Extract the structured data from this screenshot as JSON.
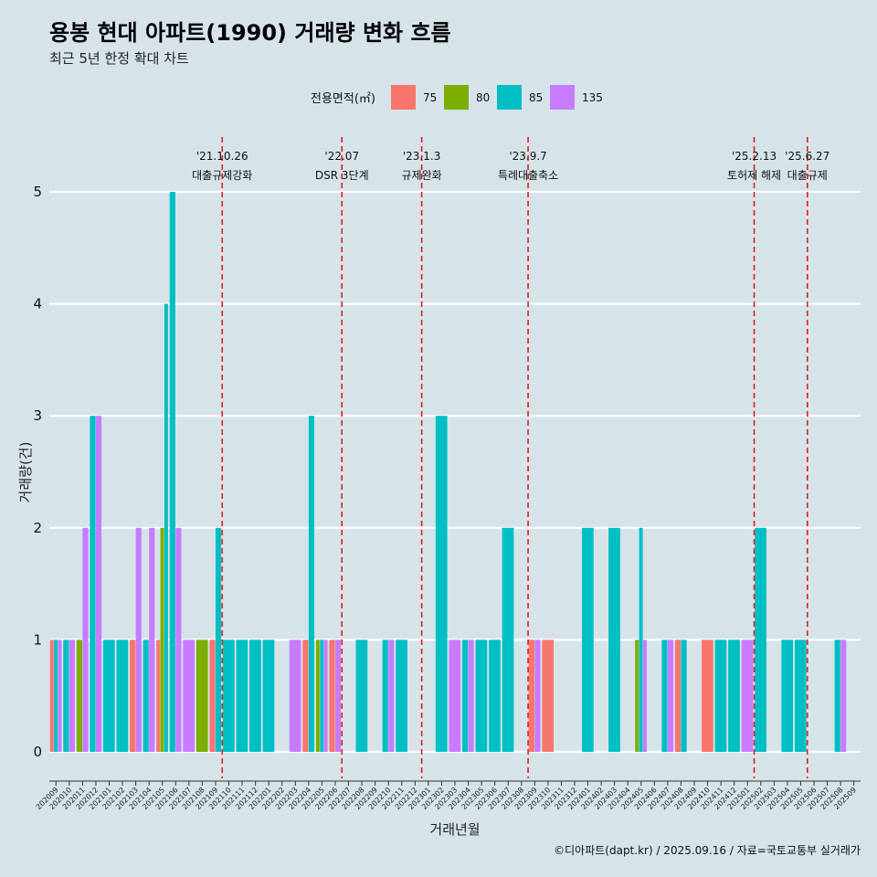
{
  "chart_data": {
    "type": "bar",
    "title": "용봉 현대 아파트(1990) 거래량 변화 흐름",
    "subtitle": "최근 5년 한정 확대 차트",
    "xlabel": "거래년월",
    "ylabel": "거래량(건)",
    "ylim": [
      0,
      5
    ],
    "yticks": [
      0,
      1,
      2,
      3,
      4,
      5
    ],
    "caption": "©디아파트(dapt.kr) / 2025.09.16 / 자료=국토교통부 실거래가",
    "legend": {
      "title": "전용면적(㎡)",
      "entries": [
        {
          "name": "75",
          "color": "#F8766D"
        },
        {
          "name": "80",
          "color": "#7CAE00"
        },
        {
          "name": "85",
          "color": "#00BFC4"
        },
        {
          "name": "135",
          "color": "#C77CFF"
        }
      ]
    },
    "categories": [
      "202009",
      "202010",
      "202011",
      "202012",
      "202101",
      "202102",
      "202103",
      "202104",
      "202105",
      "202106",
      "202107",
      "202108",
      "202109",
      "202110",
      "202111",
      "202112",
      "202201",
      "202202",
      "202203",
      "202204",
      "202205",
      "202206",
      "202207",
      "202208",
      "202209",
      "202210",
      "202211",
      "202212",
      "202301",
      "202302",
      "202303",
      "202304",
      "202305",
      "202306",
      "202307",
      "202308",
      "202309",
      "202310",
      "202311",
      "202312",
      "202401",
      "202402",
      "202403",
      "202404",
      "202405",
      "202406",
      "202407",
      "202408",
      "202409",
      "202410",
      "202411",
      "202412",
      "202501",
      "202502",
      "202503",
      "202504",
      "202505",
      "202506",
      "202507",
      "202508",
      "202509"
    ],
    "series": [
      {
        "name": "75",
        "values": [
          1,
          0,
          0,
          0,
          0,
          0,
          1,
          0,
          1,
          0,
          0,
          0,
          1,
          0,
          0,
          0,
          0,
          0,
          0,
          1,
          0,
          1,
          0,
          0,
          0,
          0,
          0,
          0,
          0,
          0,
          0,
          0,
          0,
          0,
          0,
          0,
          1,
          1,
          0,
          0,
          0,
          0,
          0,
          0,
          0,
          0,
          0,
          1,
          0,
          1,
          0,
          0,
          0,
          0,
          0,
          0,
          0,
          0,
          0,
          0,
          0
        ]
      },
      {
        "name": "80",
        "values": [
          0,
          0,
          1,
          0,
          0,
          0,
          0,
          0,
          2,
          0,
          0,
          1,
          0,
          0,
          0,
          0,
          0,
          0,
          0,
          0,
          1,
          0,
          0,
          0,
          0,
          0,
          0,
          0,
          0,
          0,
          0,
          0,
          0,
          0,
          0,
          0,
          0,
          0,
          0,
          0,
          0,
          0,
          0,
          0,
          1,
          0,
          0,
          0,
          0,
          0,
          0,
          0,
          0,
          0,
          0,
          0,
          0,
          0,
          0,
          0,
          0
        ]
      },
      {
        "name": "85",
        "values": [
          1,
          1,
          0,
          3,
          1,
          1,
          0,
          1,
          4,
          5,
          0,
          0,
          2,
          1,
          1,
          1,
          1,
          0,
          0,
          3,
          1,
          0,
          0,
          1,
          0,
          1,
          1,
          0,
          0,
          3,
          0,
          1,
          1,
          1,
          2,
          0,
          0,
          0,
          0,
          0,
          2,
          0,
          2,
          0,
          2,
          0,
          1,
          1,
          0,
          0,
          1,
          1,
          0,
          2,
          0,
          1,
          1,
          0,
          0,
          1,
          0
        ]
      },
      {
        "name": "135",
        "values": [
          1,
          1,
          2,
          3,
          0,
          0,
          2,
          2,
          0,
          2,
          1,
          0,
          0,
          0,
          0,
          0,
          0,
          0,
          1,
          0,
          1,
          1,
          0,
          0,
          0,
          1,
          0,
          0,
          0,
          0,
          1,
          1,
          0,
          0,
          0,
          0,
          1,
          0,
          0,
          0,
          0,
          0,
          0,
          0,
          1,
          0,
          1,
          0,
          0,
          0,
          0,
          0,
          1,
          0,
          0,
          0,
          0,
          0,
          0,
          1,
          0
        ]
      }
    ],
    "events": [
      {
        "date": "'21.10.26",
        "label": "대출규제강화",
        "after": "202110"
      },
      {
        "date": "'22.07",
        "label": "DSR 3단계",
        "after": "202207"
      },
      {
        "date": "'23.1.3",
        "label": "규제완화",
        "after": "202301"
      },
      {
        "date": "'23.9.7",
        "label": "특례대출축소",
        "after": "202309"
      },
      {
        "date": "'25.2.13",
        "label": "토허제 해제",
        "after": "202502"
      },
      {
        "date": "'25.6.27",
        "label": "대출규제",
        "after": "202506"
      }
    ]
  }
}
